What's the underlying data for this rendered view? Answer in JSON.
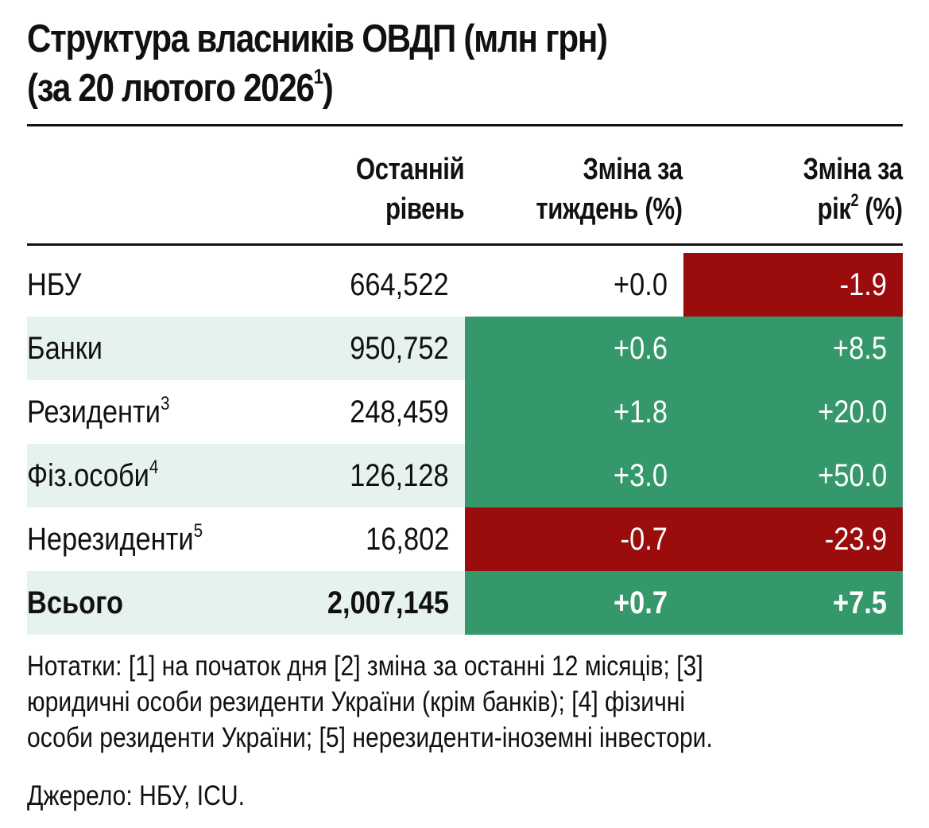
{
  "chart_data": {
    "type": "table",
    "title": "Структура власників ОВДП (млн грн)",
    "subtitle": "(за 20 лютого 2026",
    "subtitle_note": "1",
    "subtitle_end": ")",
    "columns": [
      {
        "line1": "Останній",
        "line2": "рівень",
        "note": ""
      },
      {
        "line1": "Зміна за",
        "line2": "тиждень (%)",
        "note": ""
      },
      {
        "line1": "Зміна за",
        "line2_pre": "рік",
        "note": "2",
        "line2_post": " (%)"
      }
    ],
    "rows": [
      {
        "label": "НБУ",
        "note": "",
        "level": "664,522",
        "week": "+0.0",
        "year": "-1.9",
        "week_value": 0.0,
        "year_value": -1.9
      },
      {
        "label": "Банки",
        "note": "",
        "level": "950,752",
        "week": "+0.6",
        "year": "+8.5",
        "week_value": 0.6,
        "year_value": 8.5
      },
      {
        "label": "Резиденти",
        "note": "3",
        "level": "248,459",
        "week": "+1.8",
        "year": "+20.0",
        "week_value": 1.8,
        "year_value": 20.0
      },
      {
        "label": "Фіз.особи",
        "note": "4",
        "level": "126,128",
        "week": "+3.0",
        "year": "+50.0",
        "week_value": 3.0,
        "year_value": 50.0
      },
      {
        "label": "Нерезиденти",
        "note": "5",
        "level": "16,802",
        "week": "-0.7",
        "year": "-23.9",
        "week_value": -0.7,
        "year_value": -23.9
      },
      {
        "label": "Всього",
        "note": "",
        "level": "2,007,145",
        "week": "+0.7",
        "year": "+7.5",
        "week_value": 0.7,
        "year_value": 7.5,
        "bold": true
      }
    ],
    "colors": {
      "positive": "#35986a",
      "negative": "#9b0c0c",
      "shade": "#e5f2ef"
    }
  },
  "notes": {
    "line1": "Нотатки: [1] на початок дня [2] зміна за останні 12 місяців; [3]",
    "line2": "юридичні особи  резиденти України (крім банків); [4] фізичні",
    "line3": "особи резиденти України; [5] нерезиденти-іноземні інвестори."
  },
  "source": "Джерело: НБУ, ICU."
}
